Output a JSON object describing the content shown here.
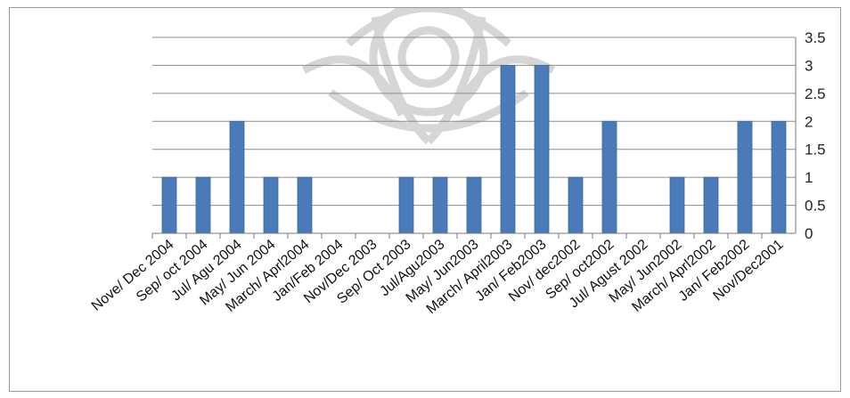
{
  "chart_data": {
    "type": "bar",
    "title": "",
    "xlabel": "",
    "ylabel": "",
    "ylim": [
      0,
      3.5
    ],
    "yticks": [
      "0",
      "0.5",
      "1",
      "1.5",
      "2",
      "2.5",
      "3",
      "3.5"
    ],
    "y_axis_side": "right",
    "grid": true,
    "legend": "none",
    "bar_color": "#4a7ab8",
    "categories": [
      "Nove/ Dec 2004",
      "Sep/ oct 2004",
      "Jul/ Agu 2004",
      "May/ Jun 2004",
      "March/ Aprl2004",
      "Jan/Feb 2004",
      "Nov/Dec 2003",
      "Sep/ Oct 2003",
      "Jul/Agu2003",
      "May/ Jun2003",
      "March/ April2003",
      "Jan/ Feb2003",
      "Nov/ dec2002",
      "Sep/ oct2002",
      "Jul/ Agust 2002",
      "May/ Jun2002",
      "March/ Aprl2002",
      "Jan/ Feb2002",
      "Nov/Dec2001"
    ],
    "values": [
      1,
      1,
      2,
      1,
      1,
      0,
      0,
      1,
      1,
      1,
      3,
      3,
      1,
      2,
      0,
      1,
      1,
      2,
      2
    ]
  }
}
